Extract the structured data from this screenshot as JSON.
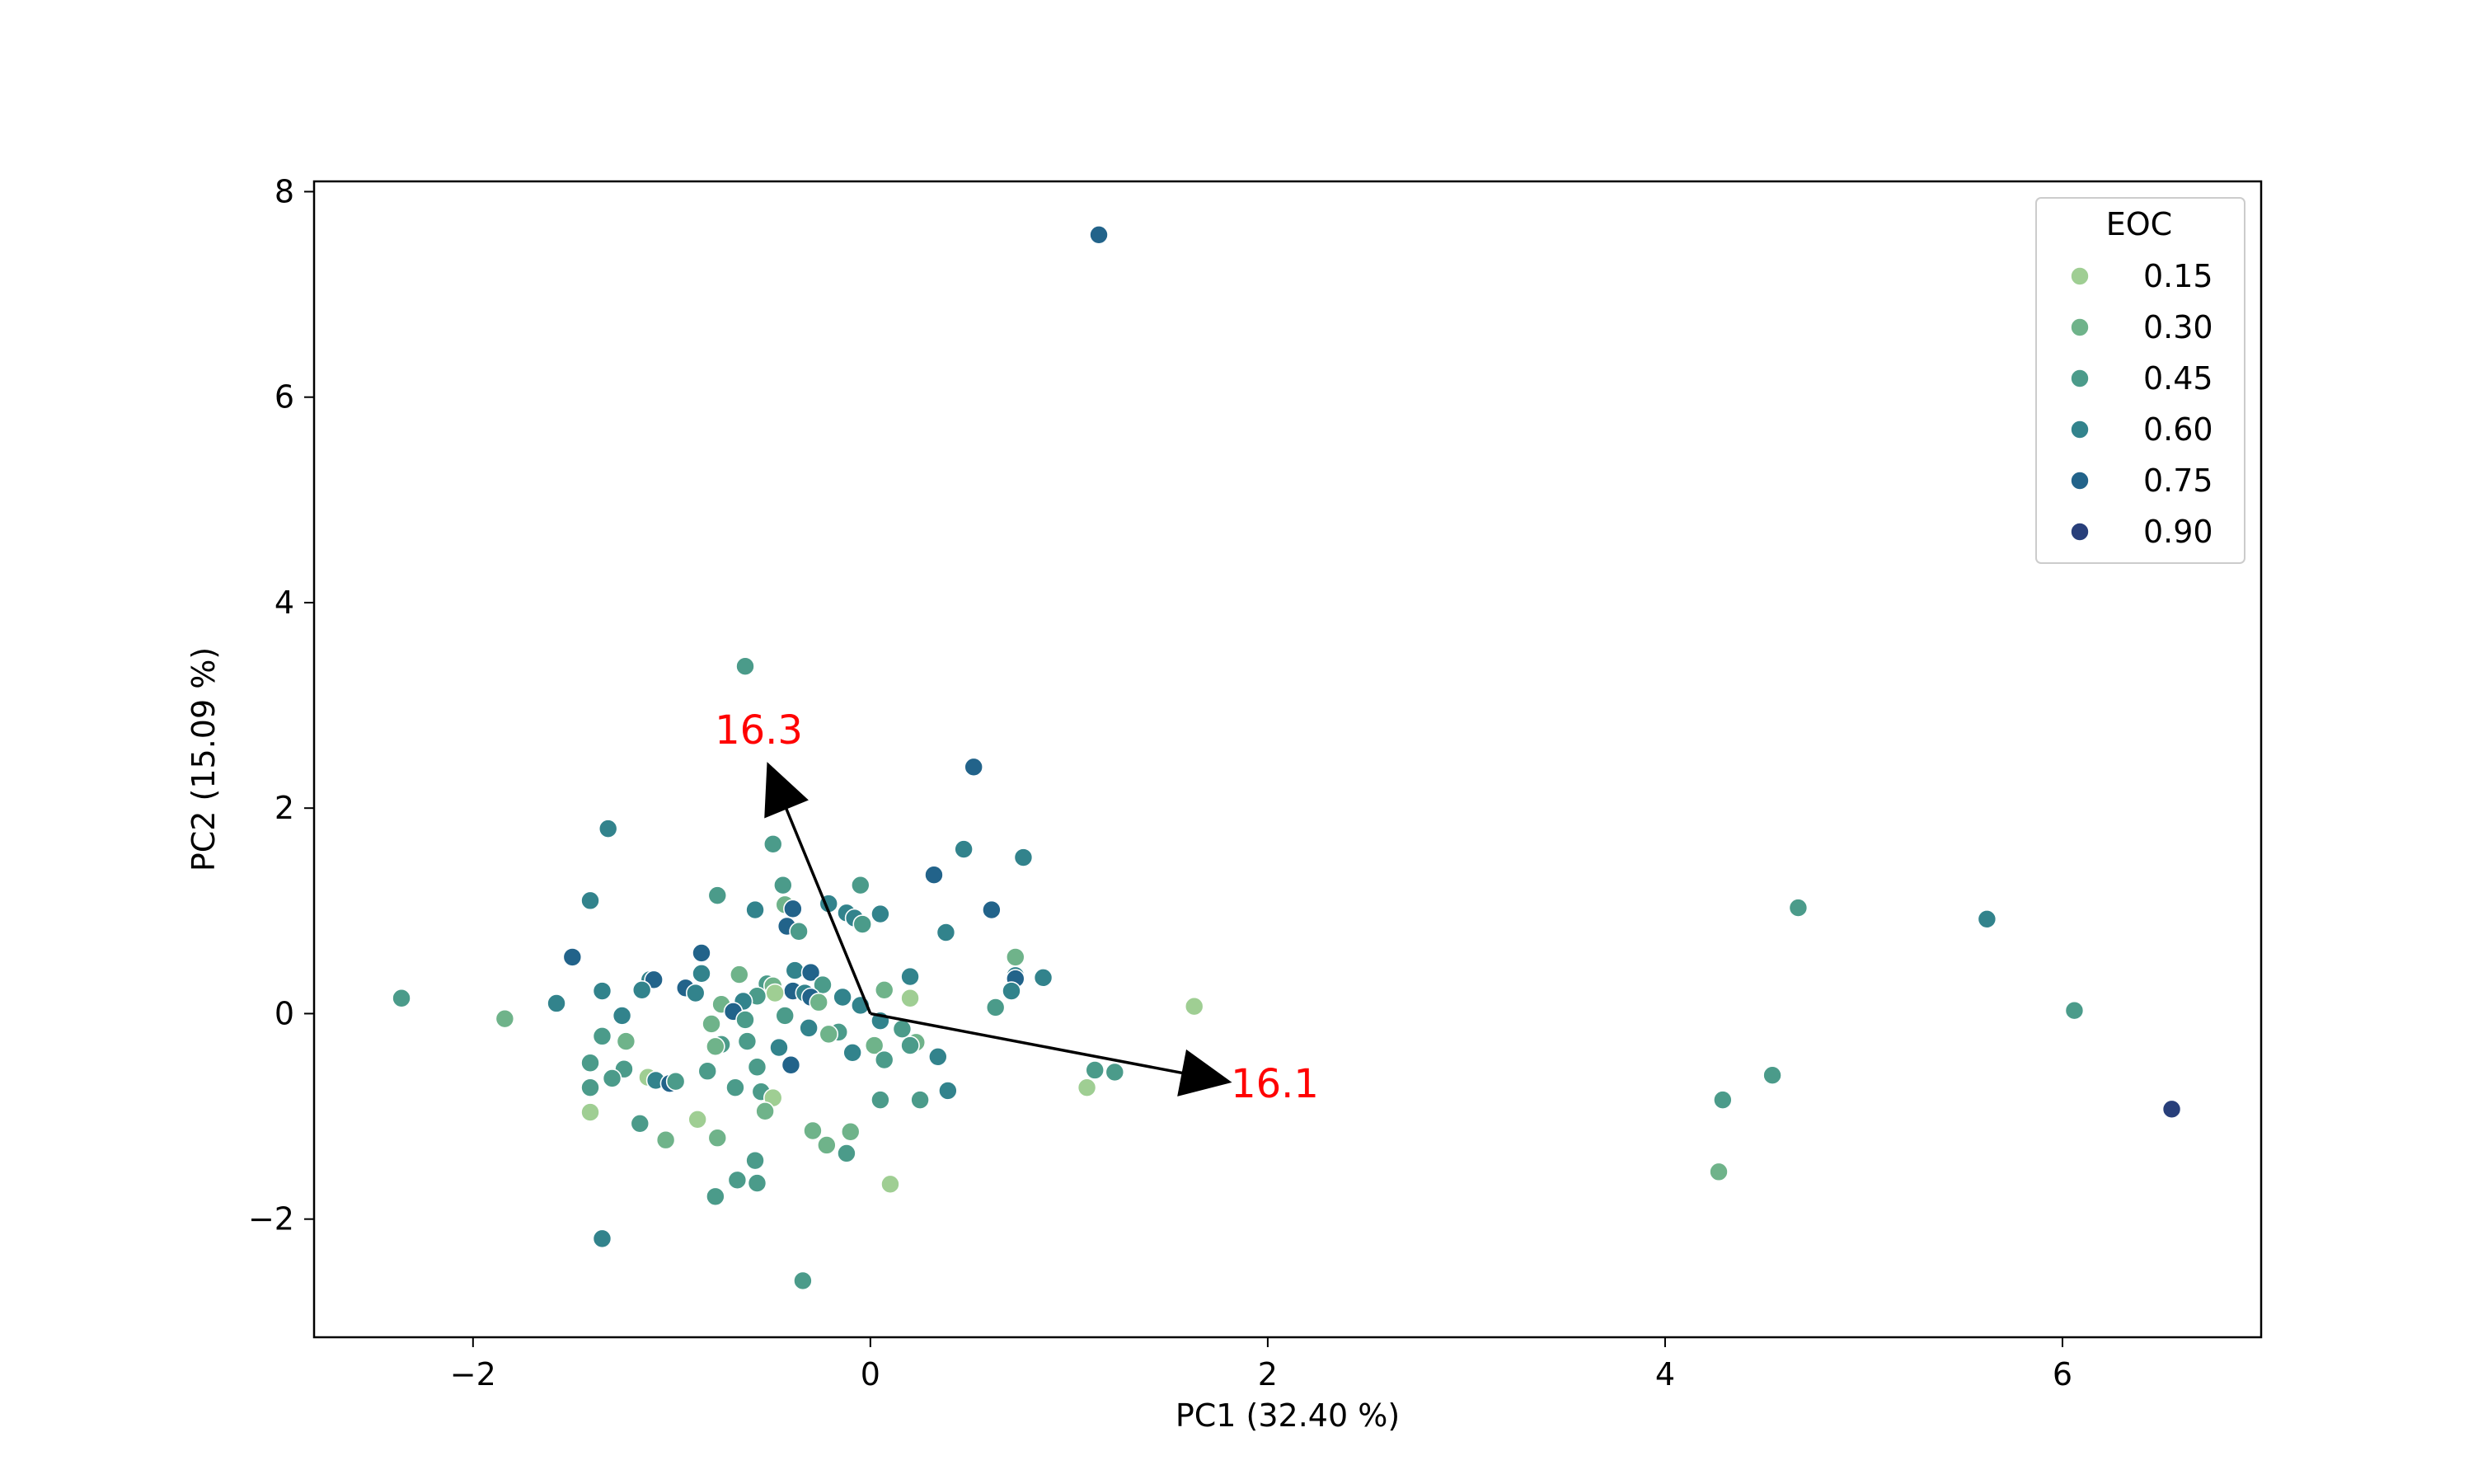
{
  "chart_data": {
    "type": "scatter",
    "title": "",
    "xlabel": "PC1 (32.40 %)",
    "ylabel": "PC2 (15.09 %)",
    "xlim": [
      -2.8,
      7.0
    ],
    "ylim": [
      -3.15,
      8.1
    ],
    "xticks": [
      -2,
      0,
      2,
      4,
      6
    ],
    "yticks": [
      -2,
      0,
      2,
      4,
      6,
      8
    ],
    "grid": false,
    "legend": {
      "title": "EOC",
      "placement": "top-right",
      "entries": [
        {
          "label": "0.15",
          "value": 0.15,
          "color": "#9fce93"
        },
        {
          "label": "0.30",
          "value": 0.3,
          "color": "#6fb38a"
        },
        {
          "label": "0.45",
          "value": 0.45,
          "color": "#4b9b8a"
        },
        {
          "label": "0.60",
          "value": 0.6,
          "color": "#32838c"
        },
        {
          "label": "0.75",
          "value": 0.75,
          "color": "#22638a"
        },
        {
          "label": "0.90",
          "value": 0.9,
          "color": "#283f7a"
        }
      ]
    },
    "points": [
      {
        "x": 1.15,
        "y": 7.58,
        "eoc": 0.75
      },
      {
        "x": -0.63,
        "y": 3.38,
        "eoc": 0.45
      },
      {
        "x": 0.52,
        "y": 2.4,
        "eoc": 0.75
      },
      {
        "x": -1.32,
        "y": 1.8,
        "eoc": 0.6
      },
      {
        "x": -0.49,
        "y": 1.65,
        "eoc": 0.45
      },
      {
        "x": 0.47,
        "y": 1.6,
        "eoc": 0.6
      },
      {
        "x": 0.77,
        "y": 1.52,
        "eoc": 0.6
      },
      {
        "x": 0.32,
        "y": 1.35,
        "eoc": 0.75
      },
      {
        "x": -0.44,
        "y": 1.25,
        "eoc": 0.45
      },
      {
        "x": -0.05,
        "y": 1.25,
        "eoc": 0.45
      },
      {
        "x": -0.77,
        "y": 1.15,
        "eoc": 0.45
      },
      {
        "x": -1.41,
        "y": 1.1,
        "eoc": 0.6
      },
      {
        "x": -0.21,
        "y": 1.07,
        "eoc": 0.6
      },
      {
        "x": -0.58,
        "y": 1.01,
        "eoc": 0.6
      },
      {
        "x": -0.43,
        "y": 1.06,
        "eoc": 0.3
      },
      {
        "x": -0.39,
        "y": 1.02,
        "eoc": 0.75
      },
      {
        "x": -0.12,
        "y": 0.98,
        "eoc": 0.6
      },
      {
        "x": 0.05,
        "y": 0.97,
        "eoc": 0.6
      },
      {
        "x": -0.08,
        "y": 0.93,
        "eoc": 0.6
      },
      {
        "x": 0.61,
        "y": 1.01,
        "eoc": 0.75
      },
      {
        "x": -0.04,
        "y": 0.87,
        "eoc": 0.45
      },
      {
        "x": -0.42,
        "y": 0.85,
        "eoc": 0.75
      },
      {
        "x": -0.36,
        "y": 0.8,
        "eoc": 0.45
      },
      {
        "x": 0.38,
        "y": 0.79,
        "eoc": 0.6
      },
      {
        "x": 1.63,
        "y": 0.07,
        "eoc": 0.15
      },
      {
        "x": -1.5,
        "y": 0.55,
        "eoc": 0.75
      },
      {
        "x": -0.85,
        "y": 0.59,
        "eoc": 0.75
      },
      {
        "x": 0.73,
        "y": 0.55,
        "eoc": 0.3
      },
      {
        "x": -0.38,
        "y": 0.42,
        "eoc": 0.6
      },
      {
        "x": -0.3,
        "y": 0.4,
        "eoc": 0.75
      },
      {
        "x": -0.85,
        "y": 0.39,
        "eoc": 0.6
      },
      {
        "x": -0.66,
        "y": 0.38,
        "eoc": 0.3
      },
      {
        "x": 0.73,
        "y": 0.37,
        "eoc": 0.6
      },
      {
        "x": 0.73,
        "y": 0.34,
        "eoc": 0.75
      },
      {
        "x": 0.87,
        "y": 0.35,
        "eoc": 0.6
      },
      {
        "x": 0.2,
        "y": 0.36,
        "eoc": 0.6
      },
      {
        "x": -1.11,
        "y": 0.33,
        "eoc": 0.6
      },
      {
        "x": -1.09,
        "y": 0.33,
        "eoc": 0.75
      },
      {
        "x": -0.52,
        "y": 0.29,
        "eoc": 0.45
      },
      {
        "x": -0.49,
        "y": 0.27,
        "eoc": 0.3
      },
      {
        "x": -0.24,
        "y": 0.28,
        "eoc": 0.45
      },
      {
        "x": -0.93,
        "y": 0.25,
        "eoc": 0.75
      },
      {
        "x": -1.15,
        "y": 0.23,
        "eoc": 0.6
      },
      {
        "x": -0.39,
        "y": 0.22,
        "eoc": 0.75
      },
      {
        "x": -0.33,
        "y": 0.2,
        "eoc": 0.6
      },
      {
        "x": -1.35,
        "y": 0.22,
        "eoc": 0.6
      },
      {
        "x": 0.07,
        "y": 0.23,
        "eoc": 0.3
      },
      {
        "x": 0.71,
        "y": 0.22,
        "eoc": 0.6
      },
      {
        "x": -0.48,
        "y": 0.2,
        "eoc": 0.15
      },
      {
        "x": -0.57,
        "y": 0.17,
        "eoc": 0.45
      },
      {
        "x": -0.88,
        "y": 0.2,
        "eoc": 0.6
      },
      {
        "x": 0.2,
        "y": 0.15,
        "eoc": 0.15
      },
      {
        "x": -0.3,
        "y": 0.16,
        "eoc": 0.75
      },
      {
        "x": -0.14,
        "y": 0.16,
        "eoc": 0.6
      },
      {
        "x": -0.64,
        "y": 0.12,
        "eoc": 0.6
      },
      {
        "x": -0.75,
        "y": 0.09,
        "eoc": 0.3
      },
      {
        "x": -0.26,
        "y": 0.11,
        "eoc": 0.3
      },
      {
        "x": 0.63,
        "y": 0.06,
        "eoc": 0.45
      },
      {
        "x": -1.58,
        "y": 0.1,
        "eoc": 0.6
      },
      {
        "x": -0.05,
        "y": 0.08,
        "eoc": 0.6
      },
      {
        "x": -0.69,
        "y": 0.02,
        "eoc": 0.75
      },
      {
        "x": -0.43,
        "y": -0.02,
        "eoc": 0.45
      },
      {
        "x": -1.25,
        "y": -0.02,
        "eoc": 0.6
      },
      {
        "x": 6.06,
        "y": 0.03,
        "eoc": 0.45
      },
      {
        "x": -2.36,
        "y": 0.15,
        "eoc": 0.45
      },
      {
        "x": -1.84,
        "y": -0.05,
        "eoc": 0.3
      },
      {
        "x": -0.8,
        "y": -0.1,
        "eoc": 0.3
      },
      {
        "x": -0.63,
        "y": -0.06,
        "eoc": 0.45
      },
      {
        "x": 0.05,
        "y": -0.07,
        "eoc": 0.6
      },
      {
        "x": -0.16,
        "y": -0.18,
        "eoc": 0.45
      },
      {
        "x": -0.31,
        "y": -0.14,
        "eoc": 0.6
      },
      {
        "x": -0.21,
        "y": -0.2,
        "eoc": 0.3
      },
      {
        "x": 0.16,
        "y": -0.15,
        "eoc": 0.45
      },
      {
        "x": -1.35,
        "y": -0.22,
        "eoc": 0.45
      },
      {
        "x": -1.23,
        "y": -0.27,
        "eoc": 0.3
      },
      {
        "x": 0.23,
        "y": -0.28,
        "eoc": 0.3
      },
      {
        "x": -0.62,
        "y": -0.27,
        "eoc": 0.45
      },
      {
        "x": -0.75,
        "y": -0.3,
        "eoc": 0.45
      },
      {
        "x": -0.78,
        "y": -0.32,
        "eoc": 0.3
      },
      {
        "x": 0.02,
        "y": -0.31,
        "eoc": 0.3
      },
      {
        "x": 0.2,
        "y": -0.31,
        "eoc": 0.45
      },
      {
        "x": -0.46,
        "y": -0.33,
        "eoc": 0.6
      },
      {
        "x": -0.09,
        "y": -0.38,
        "eoc": 0.6
      },
      {
        "x": 0.34,
        "y": -0.42,
        "eoc": 0.6
      },
      {
        "x": 0.07,
        "y": -0.45,
        "eoc": 0.45
      },
      {
        "x": -1.41,
        "y": -0.48,
        "eoc": 0.45
      },
      {
        "x": -0.4,
        "y": -0.5,
        "eoc": 0.75
      },
      {
        "x": -0.57,
        "y": -0.52,
        "eoc": 0.45
      },
      {
        "x": -1.24,
        "y": -0.54,
        "eoc": 0.45
      },
      {
        "x": -0.82,
        "y": -0.56,
        "eoc": 0.45
      },
      {
        "x": 1.13,
        "y": -0.55,
        "eoc": 0.45
      },
      {
        "x": 1.23,
        "y": -0.57,
        "eoc": 0.45
      },
      {
        "x": -1.12,
        "y": -0.62,
        "eoc": 0.15
      },
      {
        "x": -1.08,
        "y": -0.65,
        "eoc": 0.6
      },
      {
        "x": -1.3,
        "y": -0.63,
        "eoc": 0.45
      },
      {
        "x": -1.01,
        "y": -0.68,
        "eoc": 0.75
      },
      {
        "x": -0.98,
        "y": -0.66,
        "eoc": 0.45
      },
      {
        "x": -0.68,
        "y": -0.72,
        "eoc": 0.45
      },
      {
        "x": -1.41,
        "y": -0.72,
        "eoc": 0.45
      },
      {
        "x": 1.09,
        "y": -0.72,
        "eoc": 0.15
      },
      {
        "x": 0.39,
        "y": -0.75,
        "eoc": 0.6
      },
      {
        "x": -0.55,
        "y": -0.76,
        "eoc": 0.45
      },
      {
        "x": -0.49,
        "y": -0.82,
        "eoc": 0.15
      },
      {
        "x": 0.05,
        "y": -0.84,
        "eoc": 0.45
      },
      {
        "x": 0.25,
        "y": -0.84,
        "eoc": 0.45
      },
      {
        "x": 4.29,
        "y": -0.84,
        "eoc": 0.45
      },
      {
        "x": 4.54,
        "y": -0.6,
        "eoc": 0.45
      },
      {
        "x": -0.53,
        "y": -0.95,
        "eoc": 0.3
      },
      {
        "x": -1.41,
        "y": -0.96,
        "eoc": 0.15
      },
      {
        "x": -0.87,
        "y": -1.03,
        "eoc": 0.15
      },
      {
        "x": -1.16,
        "y": -1.07,
        "eoc": 0.45
      },
      {
        "x": -0.29,
        "y": -1.14,
        "eoc": 0.3
      },
      {
        "x": -0.1,
        "y": -1.15,
        "eoc": 0.3
      },
      {
        "x": -0.77,
        "y": -1.21,
        "eoc": 0.3
      },
      {
        "x": -1.03,
        "y": -1.23,
        "eoc": 0.3
      },
      {
        "x": -0.22,
        "y": -1.28,
        "eoc": 0.3
      },
      {
        "x": -0.12,
        "y": -1.36,
        "eoc": 0.45
      },
      {
        "x": -0.58,
        "y": -1.43,
        "eoc": 0.45
      },
      {
        "x": -0.67,
        "y": -1.62,
        "eoc": 0.45
      },
      {
        "x": -0.57,
        "y": -1.65,
        "eoc": 0.45
      },
      {
        "x": 0.1,
        "y": -1.66,
        "eoc": 0.15
      },
      {
        "x": -0.78,
        "y": -1.78,
        "eoc": 0.45
      },
      {
        "x": 4.27,
        "y": -1.54,
        "eoc": 0.3
      },
      {
        "x": -1.35,
        "y": -2.19,
        "eoc": 0.6
      },
      {
        "x": -0.34,
        "y": -2.6,
        "eoc": 0.45
      },
      {
        "x": 4.67,
        "y": 1.03,
        "eoc": 0.45
      },
      {
        "x": 5.62,
        "y": 0.92,
        "eoc": 0.6
      },
      {
        "x": 6.55,
        "y": -0.93,
        "eoc": 0.9
      }
    ],
    "arrows": [
      {
        "from": [
          0,
          0
        ],
        "to": [
          -0.52,
          2.45
        ],
        "label": "16.3"
      },
      {
        "from": [
          0,
          0
        ],
        "to": [
          1.82,
          -0.67
        ],
        "label": "16.1"
      }
    ]
  }
}
